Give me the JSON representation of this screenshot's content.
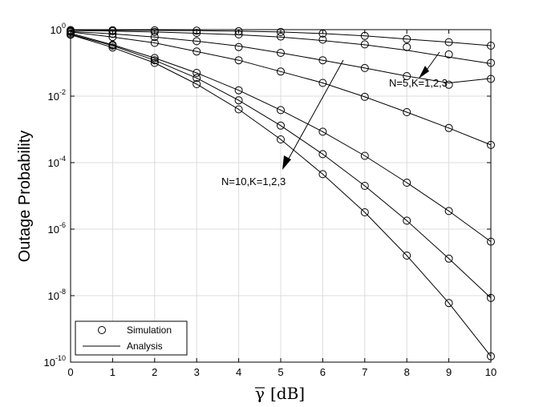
{
  "chart_data": {
    "type": "line",
    "xlabel_symbol": "γ",
    "xlabel_unit": "[dB]",
    "ylabel": "Outage Probability",
    "xlim": [
      0,
      10
    ],
    "ylim": [
      1e-10,
      1
    ],
    "yscale": "log",
    "grid": true,
    "x_ticks": [
      "0",
      "1",
      "2",
      "3",
      "4",
      "5",
      "6",
      "7",
      "8",
      "9",
      "10"
    ],
    "y_ticks": [
      {
        "base": "10",
        "exp": "0",
        "value": 1
      },
      {
        "base": "10",
        "exp": "-2",
        "value": 0.01
      },
      {
        "base": "10",
        "exp": "-4",
        "value": 0.0001
      },
      {
        "base": "10",
        "exp": "-6",
        "value": 1e-06
      },
      {
        "base": "10",
        "exp": "-8",
        "value": 1e-08
      },
      {
        "base": "10",
        "exp": "-10",
        "value": 1e-10
      }
    ],
    "legend": {
      "position": "bottom-left",
      "entries": [
        {
          "label": "Simulation",
          "style": "marker"
        },
        {
          "label": "Analysis",
          "style": "line"
        }
      ]
    },
    "annotations": [
      {
        "text": "N=5,K=1,2,3"
      },
      {
        "text": "N=10,K=1,2,3"
      }
    ],
    "series": [
      {
        "x": [
          0,
          1,
          2,
          3,
          4,
          5,
          6,
          7,
          8,
          9,
          10
        ],
        "analysis": [
          0.97,
          0.96,
          0.95,
          0.93,
          0.9,
          0.85,
          0.76,
          0.65,
          0.52,
          0.42,
          0.33
        ],
        "simulation": [
          0.97,
          0.96,
          0.95,
          0.93,
          0.9,
          0.85,
          0.76,
          0.65,
          0.52,
          0.42,
          0.33
        ]
      },
      {
        "x": [
          0,
          1,
          2,
          3,
          4,
          5,
          6,
          7,
          8,
          9,
          10
        ],
        "analysis": [
          0.95,
          0.9,
          0.85,
          0.78,
          0.7,
          0.6,
          0.47,
          0.35,
          0.24,
          0.15,
          0.095
        ],
        "simulation": [
          0.92,
          0.9,
          0.85,
          0.8,
          0.72,
          0.62,
          0.5,
          0.36,
          0.3,
          0.18,
          0.1
        ]
      },
      {
        "x": [
          0,
          1,
          2,
          3,
          4,
          5,
          6,
          7,
          8,
          9,
          10
        ],
        "analysis": [
          0.88,
          0.75,
          0.6,
          0.45,
          0.32,
          0.2,
          0.12,
          0.07,
          0.04,
          0.025,
          0.034
        ],
        "simulation": [
          0.88,
          0.75,
          0.6,
          0.45,
          0.3,
          0.2,
          0.12,
          0.07,
          0.04,
          0.022,
          0.033
        ]
      },
      {
        "x": [
          0,
          1,
          2,
          3,
          4,
          5,
          6,
          7,
          8,
          9,
          10
        ],
        "analysis": [
          0.85,
          0.6,
          0.4,
          0.22,
          0.12,
          0.055,
          0.025,
          0.0095,
          0.0033,
          0.0011,
          0.00034
        ],
        "simulation": [
          0.85,
          0.6,
          0.4,
          0.22,
          0.12,
          0.055,
          0.025,
          0.0095,
          0.0033,
          0.0011,
          0.00034
        ]
      },
      {
        "x": [
          0,
          1,
          2,
          3,
          4,
          5,
          6,
          7,
          8,
          9,
          10
        ],
        "analysis": [
          0.78,
          0.35,
          0.14,
          0.05,
          0.015,
          0.0038,
          0.00085,
          0.00016,
          2.5e-05,
          3.5e-06,
          4.2e-07
        ],
        "simulation": [
          0.78,
          0.35,
          0.14,
          0.05,
          0.015,
          0.0038,
          0.00085,
          0.00016,
          2.5e-05,
          3.5e-06,
          4.2e-07
        ]
      },
      {
        "x": [
          0,
          1,
          2,
          3,
          4,
          5,
          6,
          7,
          8,
          9,
          10
        ],
        "analysis": [
          0.72,
          0.33,
          0.12,
          0.035,
          0.0075,
          0.0013,
          0.00018,
          2e-05,
          1.8e-06,
          1.3e-07,
          8.5e-09
        ],
        "simulation": [
          0.72,
          0.33,
          0.12,
          0.035,
          0.0075,
          0.0013,
          0.00018,
          2e-05,
          1.8e-06,
          1.3e-07,
          8.5e-09
        ]
      },
      {
        "x": [
          0,
          1,
          2,
          3,
          4,
          5,
          6,
          7,
          8,
          9,
          10
        ],
        "analysis": [
          0.7,
          0.29,
          0.1,
          0.023,
          0.004,
          0.0005,
          4.5e-05,
          3.2e-06,
          1.6e-07,
          6e-09,
          1.5e-10
        ],
        "simulation": [
          0.7,
          0.29,
          0.1,
          0.023,
          0.004,
          0.0005,
          4.5e-05,
          3.2e-06,
          1.6e-07,
          6e-09,
          1.5e-10
        ]
      }
    ]
  }
}
